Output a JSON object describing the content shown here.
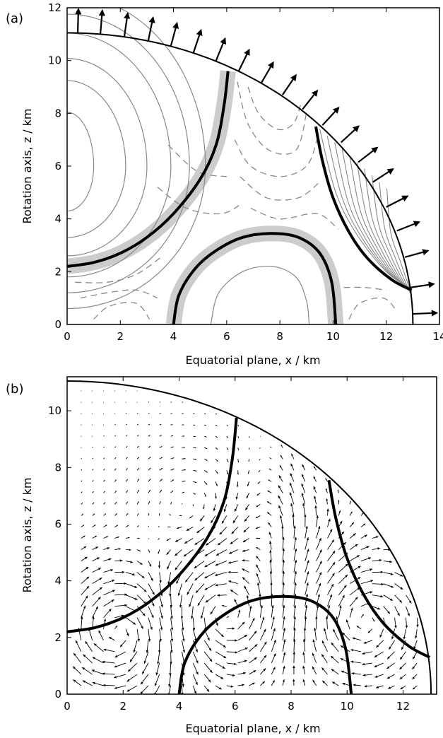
{
  "chart_data": [
    {
      "type": "contour",
      "panel_label": "(a)",
      "xlabel": "Equatorial plane, x / km",
      "ylabel": "Rotation axis,  z / km",
      "xlim": [
        0,
        14
      ],
      "ylim": [
        0,
        12
      ],
      "xticks": [
        0,
        2,
        4,
        6,
        8,
        10,
        12,
        14
      ],
      "yticks": [
        0,
        2,
        4,
        6,
        8,
        10,
        12
      ],
      "grid": false,
      "star_surface": {
        "equatorial_radius": 13.0,
        "polar_radius": 11.05
      },
      "thick_field_lines": [
        {
          "x": [
            0.0,
            1.0,
            2.0,
            3.0,
            4.0,
            5.0,
            5.6,
            5.9,
            6.05
          ],
          "y": [
            2.2,
            2.35,
            2.7,
            3.3,
            4.2,
            5.5,
            6.8,
            8.3,
            9.6
          ]
        },
        {
          "x": [
            4.0,
            4.2,
            4.8,
            5.6,
            6.6,
            7.7,
            8.7,
            9.5,
            9.95,
            10.1
          ],
          "y": [
            0.0,
            1.1,
            2.1,
            2.8,
            3.3,
            3.45,
            3.3,
            2.7,
            1.6,
            0.0
          ]
        },
        {
          "x": [
            9.35,
            9.6,
            10.0,
            10.6,
            11.3,
            12.2,
            12.95
          ],
          "y": [
            7.5,
            6.2,
            4.8,
            3.5,
            2.5,
            1.7,
            1.3
          ]
        }
      ],
      "surface_flow_arrows": [
        {
          "x": 0.4,
          "y": 11.05
        },
        {
          "x": 1.25,
          "y": 11.0
        },
        {
          "x": 2.15,
          "y": 10.9
        },
        {
          "x": 3.05,
          "y": 10.75
        },
        {
          "x": 3.9,
          "y": 10.55
        },
        {
          "x": 4.75,
          "y": 10.3
        },
        {
          "x": 5.6,
          "y": 10.0
        },
        {
          "x": 6.45,
          "y": 9.6
        },
        {
          "x": 7.3,
          "y": 9.15
        },
        {
          "x": 8.1,
          "y": 8.7
        },
        {
          "x": 8.85,
          "y": 8.15
        },
        {
          "x": 9.6,
          "y": 7.55
        },
        {
          "x": 10.3,
          "y": 6.9
        },
        {
          "x": 10.95,
          "y": 6.15
        },
        {
          "x": 11.5,
          "y": 5.4
        },
        {
          "x": 12.0,
          "y": 4.45
        },
        {
          "x": 12.4,
          "y": 3.55
        },
        {
          "x": 12.7,
          "y": 2.55
        },
        {
          "x": 12.9,
          "y": 1.4
        },
        {
          "x": 13.0,
          "y": 0.4
        }
      ]
    },
    {
      "type": "vector",
      "panel_label": "(b)",
      "xlabel": "Equatorial plane, x / km",
      "ylabel": "Rotation axis,  z / km",
      "xlim": [
        0,
        13.2
      ],
      "ylim": [
        0,
        11.2
      ],
      "xticks": [
        0,
        2,
        4,
        6,
        8,
        10,
        12
      ],
      "yticks": [
        0,
        2,
        4,
        6,
        8,
        10
      ],
      "grid": false,
      "star_surface": {
        "equatorial_radius": 13.0,
        "polar_radius": 11.05
      },
      "thick_field_lines": [
        {
          "x": [
            0.0,
            1.0,
            2.0,
            3.0,
            4.0,
            5.0,
            5.6,
            5.9,
            6.05
          ],
          "y": [
            2.2,
            2.35,
            2.7,
            3.3,
            4.2,
            5.5,
            6.8,
            8.3,
            9.75
          ]
        },
        {
          "x": [
            4.0,
            4.2,
            4.8,
            5.6,
            6.6,
            7.7,
            8.7,
            9.5,
            9.95,
            10.15
          ],
          "y": [
            0.0,
            1.1,
            2.1,
            2.8,
            3.3,
            3.45,
            3.3,
            2.7,
            1.6,
            0.0
          ]
        },
        {
          "x": [
            9.35,
            9.6,
            10.0,
            10.6,
            11.3,
            12.2,
            12.95
          ],
          "y": [
            7.55,
            6.2,
            4.8,
            3.5,
            2.5,
            1.7,
            1.3
          ]
        }
      ]
    }
  ]
}
